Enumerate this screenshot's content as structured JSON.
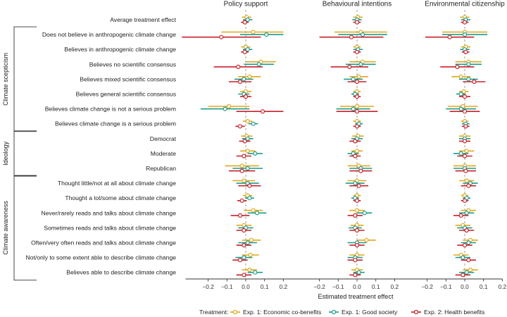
{
  "chart_data": {
    "type": "scatter",
    "subtype": "forest-plot (point estimates with confidence intervals)",
    "panels": [
      "Policy support",
      "Behavioural intentions",
      "Environmental citizenship"
    ],
    "xlabel": "Estimated treatment effect",
    "xlim": [
      -0.35,
      0.2
    ],
    "xticks": [
      -0.2,
      -0.1,
      0,
      0.1,
      0.2
    ],
    "tick_labels": [
      "−0.2",
      "−0.1",
      "0.0",
      "0.1",
      "0.2"
    ],
    "reference_line": 0,
    "grid": false,
    "legend": {
      "position": "bottom",
      "title": "Treatment:",
      "entries": [
        "Exp. 1: Economic co-benefits",
        "Exp. 1: Good society",
        "Exp. 2: Health benefits"
      ]
    },
    "groups": [
      {
        "label": "Climate scepticism",
        "rows": [
          1,
          7
        ]
      },
      {
        "label": "Ideology",
        "rows": [
          8,
          10
        ]
      },
      {
        "label": "Climate awareness",
        "rows": [
          11,
          17
        ]
      }
    ],
    "rows": [
      "Average treatment effect",
      "Does not believe in anthropogenic climate change",
      "Believes in anthropogenic climate change",
      "Believes no scientific consensus",
      "Believes mixed scientific consensus",
      "Believes general scientific consensus",
      "Believes climate change is not a serious problem",
      "Believes climate change is a serious problem",
      "Democrat",
      "Moderate",
      "Republican",
      "Thought little/not at all about climate change",
      "Thought a lot/some about climate change",
      "Never/rarely reads and talks about climate change",
      "Sometimes reads and talks about climate change",
      "Often/very often reads and talks about climate change",
      "Not/only to some extent able to describe climate change",
      "Believes able to describe climate change"
    ],
    "series": [
      {
        "name": "Exp. 1: Economic co-benefits",
        "color": "#e0a81c",
        "values": [
          [
            [
              0.005,
              -0.02,
              0.03
            ],
            [
              0.04,
              -0.13,
              0.21
            ],
            [
              0.0,
              -0.025,
              0.025
            ],
            [
              0.08,
              0.0,
              0.16
            ],
            [
              0.02,
              -0.04,
              0.08
            ],
            [
              0.0,
              -0.03,
              0.03
            ],
            [
              -0.09,
              -0.2,
              0.02
            ],
            [
              0.01,
              -0.015,
              0.035
            ],
            [
              0.005,
              -0.025,
              0.035
            ],
            [
              0.01,
              -0.03,
              0.05
            ],
            [
              -0.02,
              -0.11,
              0.07
            ],
            [
              -0.01,
              -0.07,
              0.05
            ],
            [
              0.01,
              -0.015,
              0.035
            ],
            [
              0.04,
              -0.01,
              0.09
            ],
            [
              -0.01,
              -0.05,
              0.03
            ],
            [
              0.03,
              -0.02,
              0.08
            ],
            [
              0.025,
              -0.02,
              0.07
            ],
            [
              0.02,
              -0.02,
              0.06
            ]
          ],
          [
            [
              0.005,
              -0.02,
              0.03
            ],
            [
              0.02,
              -0.12,
              0.16
            ],
            [
              0.0,
              -0.02,
              0.02
            ],
            [
              0.03,
              -0.04,
              0.1
            ],
            [
              0.01,
              -0.04,
              0.06
            ],
            [
              0.0,
              -0.02,
              0.02
            ],
            [
              0.0,
              -0.09,
              0.09
            ],
            [
              0.0,
              -0.02,
              0.02
            ],
            [
              0.005,
              -0.025,
              0.035
            ],
            [
              0.0,
              -0.03,
              0.03
            ],
            [
              0.01,
              -0.05,
              0.07
            ],
            [
              0.0,
              -0.05,
              0.05
            ],
            [
              0.0,
              -0.02,
              0.02
            ],
            [
              0.0,
              -0.04,
              0.04
            ],
            [
              0.0,
              -0.035,
              0.035
            ],
            [
              0.05,
              0.0,
              0.1
            ],
            [
              0.0,
              -0.04,
              0.04
            ],
            [
              0.0,
              -0.03,
              0.03
            ]
          ],
          [
            [
              0.0,
              -0.025,
              0.025
            ],
            [
              0.0,
              -0.12,
              0.12
            ],
            [
              0.005,
              -0.02,
              0.03
            ],
            [
              0.02,
              -0.05,
              0.09
            ],
            [
              -0.02,
              -0.07,
              0.03
            ],
            [
              -0.005,
              -0.03,
              0.02
            ],
            [
              -0.01,
              -0.09,
              0.07
            ],
            [
              0.0,
              -0.02,
              0.02
            ],
            [
              0.0,
              -0.03,
              0.03
            ],
            [
              0.01,
              -0.03,
              0.05
            ],
            [
              0.0,
              -0.06,
              0.06
            ],
            [
              0.01,
              -0.03,
              0.05
            ],
            [
              0.0,
              -0.02,
              0.02
            ],
            [
              0.02,
              -0.02,
              0.06
            ],
            [
              -0.01,
              -0.05,
              0.03
            ],
            [
              0.03,
              -0.01,
              0.07
            ],
            [
              -0.02,
              -0.06,
              0.02
            ],
            [
              0.03,
              -0.01,
              0.07
            ]
          ]
        ]
      },
      {
        "name": "Exp. 1: Good society",
        "color": "#1c9c8c",
        "values": [
          [
            [
              0.01,
              -0.015,
              0.035
            ],
            [
              0.11,
              -0.03,
              0.25
            ],
            [
              0.01,
              -0.015,
              0.035
            ],
            [
              0.07,
              -0.01,
              0.15
            ],
            [
              -0.01,
              -0.06,
              0.04
            ],
            [
              -0.01,
              -0.04,
              0.02
            ],
            [
              -0.11,
              -0.24,
              0.02
            ],
            [
              0.04,
              0.015,
              0.065
            ],
            [
              0.01,
              -0.02,
              0.04
            ],
            [
              0.05,
              0.01,
              0.09
            ],
            [
              0.01,
              -0.07,
              0.09
            ],
            [
              0.01,
              -0.05,
              0.07
            ],
            [
              0.02,
              -0.005,
              0.045
            ],
            [
              0.06,
              0.01,
              0.11
            ],
            [
              0.0,
              -0.04,
              0.04
            ],
            [
              0.01,
              -0.04,
              0.06
            ],
            [
              -0.01,
              -0.055,
              0.035
            ],
            [
              0.05,
              0.01,
              0.09
            ]
          ],
          [
            [
              0.0,
              -0.025,
              0.025
            ],
            [
              0.03,
              -0.1,
              0.16
            ],
            [
              0.005,
              -0.02,
              0.03
            ],
            [
              0.02,
              -0.06,
              0.1
            ],
            [
              -0.02,
              -0.07,
              0.03
            ],
            [
              -0.01,
              -0.03,
              0.01
            ],
            [
              -0.02,
              -0.11,
              0.07
            ],
            [
              0.01,
              -0.01,
              0.03
            ],
            [
              0.0,
              -0.03,
              0.03
            ],
            [
              -0.02,
              -0.05,
              0.01
            ],
            [
              0.02,
              -0.04,
              0.08
            ],
            [
              -0.01,
              -0.06,
              0.04
            ],
            [
              -0.01,
              -0.03,
              0.01
            ],
            [
              0.04,
              0.0,
              0.08
            ],
            [
              -0.01,
              -0.045,
              0.025
            ],
            [
              0.0,
              -0.05,
              0.05
            ],
            [
              -0.01,
              -0.05,
              0.03
            ],
            [
              0.01,
              -0.02,
              0.04
            ]
          ],
          [
            [
              0.005,
              -0.02,
              0.03
            ],
            [
              0.0,
              -0.12,
              0.12
            ],
            [
              0.0,
              -0.025,
              0.025
            ],
            [
              0.02,
              -0.05,
              0.09
            ],
            [
              0.02,
              -0.03,
              0.07
            ],
            [
              -0.02,
              -0.045,
              0.005
            ],
            [
              -0.02,
              -0.1,
              0.06
            ],
            [
              0.005,
              -0.015,
              0.025
            ],
            [
              0.0,
              -0.03,
              0.03
            ],
            [
              -0.02,
              -0.06,
              0.02
            ],
            [
              0.0,
              -0.06,
              0.06
            ],
            [
              0.03,
              -0.01,
              0.07
            ],
            [
              0.01,
              -0.01,
              0.03
            ],
            [
              0.01,
              -0.03,
              0.05
            ],
            [
              0.0,
              -0.04,
              0.04
            ],
            [
              0.02,
              -0.02,
              0.06
            ],
            [
              -0.01,
              -0.05,
              0.03
            ],
            [
              0.01,
              -0.03,
              0.05
            ]
          ]
        ]
      },
      {
        "name": "Exp. 2: Health benefits",
        "color": "#c8202a",
        "values": [
          [
            [
              -0.005,
              -0.025,
              0.015
            ],
            [
              -0.13,
              -0.34,
              0.08
            ],
            [
              -0.005,
              -0.025,
              0.015
            ],
            [
              -0.04,
              -0.17,
              0.09
            ],
            [
              -0.03,
              -0.09,
              0.03
            ],
            [
              0.0,
              -0.03,
              0.03
            ],
            [
              0.09,
              -0.05,
              0.23
            ],
            [
              -0.03,
              -0.055,
              -0.005
            ],
            [
              -0.005,
              -0.035,
              0.025
            ],
            [
              -0.01,
              -0.05,
              0.03
            ],
            [
              -0.02,
              -0.09,
              0.05
            ],
            [
              0.02,
              -0.04,
              0.08
            ],
            [
              -0.02,
              -0.045,
              0.005
            ],
            [
              -0.03,
              -0.08,
              0.02
            ],
            [
              -0.01,
              -0.05,
              0.03
            ],
            [
              -0.01,
              -0.05,
              0.03
            ],
            [
              -0.03,
              -0.07,
              0.01
            ],
            [
              -0.01,
              -0.05,
              0.03
            ]
          ],
          [
            [
              0.0,
              -0.02,
              0.02
            ],
            [
              -0.03,
              -0.2,
              0.14
            ],
            [
              0.0,
              -0.02,
              0.02
            ],
            [
              -0.04,
              -0.14,
              0.06
            ],
            [
              0.0,
              -0.05,
              0.05
            ],
            [
              0.0,
              -0.02,
              0.02
            ],
            [
              0.0,
              -0.11,
              0.11
            ],
            [
              0.0,
              -0.02,
              0.02
            ],
            [
              -0.01,
              -0.04,
              0.02
            ],
            [
              -0.01,
              -0.04,
              0.02
            ],
            [
              0.02,
              -0.04,
              0.08
            ],
            [
              0.01,
              -0.04,
              0.06
            ],
            [
              0.0,
              -0.02,
              0.02
            ],
            [
              -0.01,
              -0.05,
              0.03
            ],
            [
              0.0,
              -0.04,
              0.04
            ],
            [
              0.0,
              -0.04,
              0.04
            ],
            [
              -0.01,
              -0.05,
              0.03
            ],
            [
              -0.01,
              -0.04,
              0.02
            ]
          ],
          [
            [
              0.0,
              -0.02,
              0.02
            ],
            [
              -0.08,
              -0.21,
              0.05
            ],
            [
              0.005,
              -0.015,
              0.025
            ],
            [
              -0.04,
              -0.13,
              0.05
            ],
            [
              0.05,
              -0.01,
              0.11
            ],
            [
              0.0,
              -0.03,
              0.03
            ],
            [
              0.0,
              -0.08,
              0.08
            ],
            [
              0.005,
              -0.015,
              0.025
            ],
            [
              0.0,
              -0.03,
              0.03
            ],
            [
              0.0,
              -0.04,
              0.04
            ],
            [
              0.005,
              -0.05,
              0.06
            ],
            [
              0.02,
              -0.02,
              0.06
            ],
            [
              0.0,
              -0.02,
              0.02
            ],
            [
              -0.02,
              -0.06,
              0.02
            ],
            [
              0.01,
              -0.03,
              0.05
            ],
            [
              0.0,
              -0.04,
              0.04
            ],
            [
              0.02,
              -0.02,
              0.06
            ],
            [
              -0.01,
              -0.05,
              0.03
            ]
          ]
        ]
      }
    ]
  }
}
